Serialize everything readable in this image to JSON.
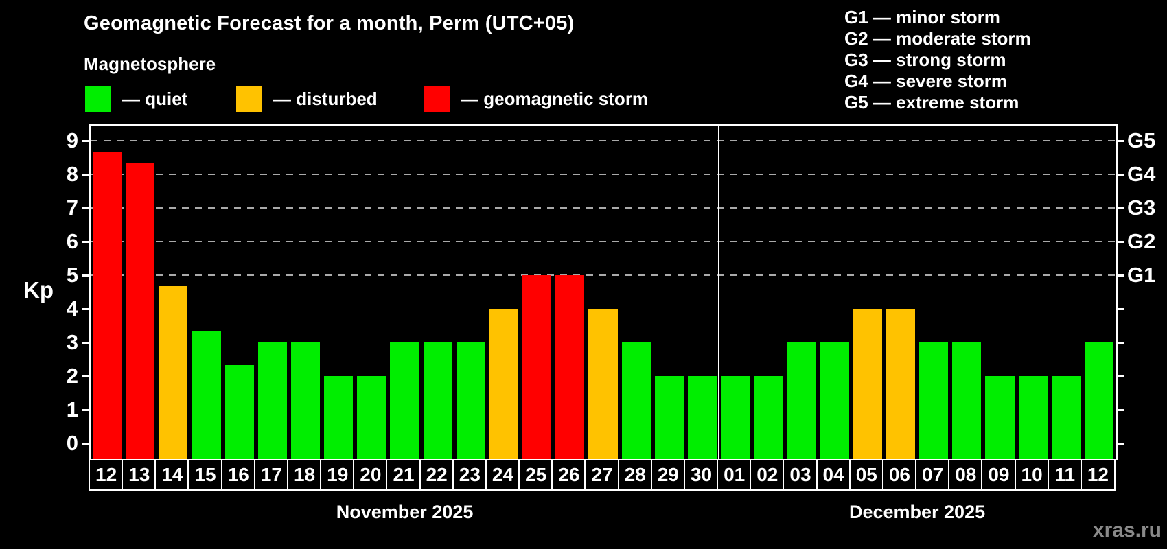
{
  "header": {
    "title": "Geomagnetic Forecast for a month, Perm (UTC+05)",
    "subtitle": "Magnetosphere"
  },
  "legend": [
    {
      "name": "quiet",
      "label": "— quiet",
      "color": "#00ee00"
    },
    {
      "name": "disturbed",
      "label": "— disturbed",
      "color": "#ffc200"
    },
    {
      "name": "storm",
      "label": "— geomagnetic storm",
      "color": "#ff0000"
    }
  ],
  "storm_scale_legend": [
    "G1 — minor storm",
    "G2 — moderate storm",
    "G3 — strong storm",
    "G4 — severe storm",
    "G5 — extreme storm"
  ],
  "watermark": "xras.ru",
  "chart_data": {
    "type": "bar",
    "title": "Geomagnetic Forecast for a month, Perm (UTC+05)",
    "ylabel": "Kp",
    "ylim": [
      0,
      9
    ],
    "yticks": [
      0,
      1,
      2,
      3,
      4,
      5,
      6,
      7,
      8,
      9
    ],
    "grid_levels": [
      5,
      6,
      7,
      8,
      9
    ],
    "grid_on": true,
    "right_axis": [
      {
        "kp": 5,
        "label": "G1"
      },
      {
        "kp": 6,
        "label": "G2"
      },
      {
        "kp": 7,
        "label": "G3"
      },
      {
        "kp": 8,
        "label": "G4"
      },
      {
        "kp": 9,
        "label": "G5"
      }
    ],
    "level_colors": {
      "quiet": "#00ee00",
      "disturbed": "#ffc200",
      "storm": "#ff0000"
    },
    "months": [
      {
        "label": "November 2025",
        "days": [
          {
            "day": "12",
            "kp": 8.67,
            "level": "storm"
          },
          {
            "day": "13",
            "kp": 8.33,
            "level": "storm"
          },
          {
            "day": "14",
            "kp": 4.67,
            "level": "disturbed"
          },
          {
            "day": "15",
            "kp": 3.33,
            "level": "quiet"
          },
          {
            "day": "16",
            "kp": 2.33,
            "level": "quiet"
          },
          {
            "day": "17",
            "kp": 3,
            "level": "quiet"
          },
          {
            "day": "18",
            "kp": 3,
            "level": "quiet"
          },
          {
            "day": "19",
            "kp": 2,
            "level": "quiet"
          },
          {
            "day": "20",
            "kp": 2,
            "level": "quiet"
          },
          {
            "day": "21",
            "kp": 3,
            "level": "quiet"
          },
          {
            "day": "22",
            "kp": 3,
            "level": "quiet"
          },
          {
            "day": "23",
            "kp": 3,
            "level": "quiet"
          },
          {
            "day": "24",
            "kp": 4,
            "level": "disturbed"
          },
          {
            "day": "25",
            "kp": 5,
            "level": "storm"
          },
          {
            "day": "26",
            "kp": 5,
            "level": "storm"
          },
          {
            "day": "27",
            "kp": 4,
            "level": "disturbed"
          },
          {
            "day": "28",
            "kp": 3,
            "level": "quiet"
          },
          {
            "day": "29",
            "kp": 2,
            "level": "quiet"
          },
          {
            "day": "30",
            "kp": 2,
            "level": "quiet"
          }
        ]
      },
      {
        "label": "December 2025",
        "days": [
          {
            "day": "01",
            "kp": 2,
            "level": "quiet"
          },
          {
            "day": "02",
            "kp": 2,
            "level": "quiet"
          },
          {
            "day": "03",
            "kp": 3,
            "level": "quiet"
          },
          {
            "day": "04",
            "kp": 3,
            "level": "quiet"
          },
          {
            "day": "05",
            "kp": 4,
            "level": "disturbed"
          },
          {
            "day": "06",
            "kp": 4,
            "level": "disturbed"
          },
          {
            "day": "07",
            "kp": 3,
            "level": "quiet"
          },
          {
            "day": "08",
            "kp": 3,
            "level": "quiet"
          },
          {
            "day": "09",
            "kp": 2,
            "level": "quiet"
          },
          {
            "day": "10",
            "kp": 2,
            "level": "quiet"
          },
          {
            "day": "11",
            "kp": 2,
            "level": "quiet"
          },
          {
            "day": "12",
            "kp": 3,
            "level": "quiet"
          }
        ]
      }
    ]
  }
}
